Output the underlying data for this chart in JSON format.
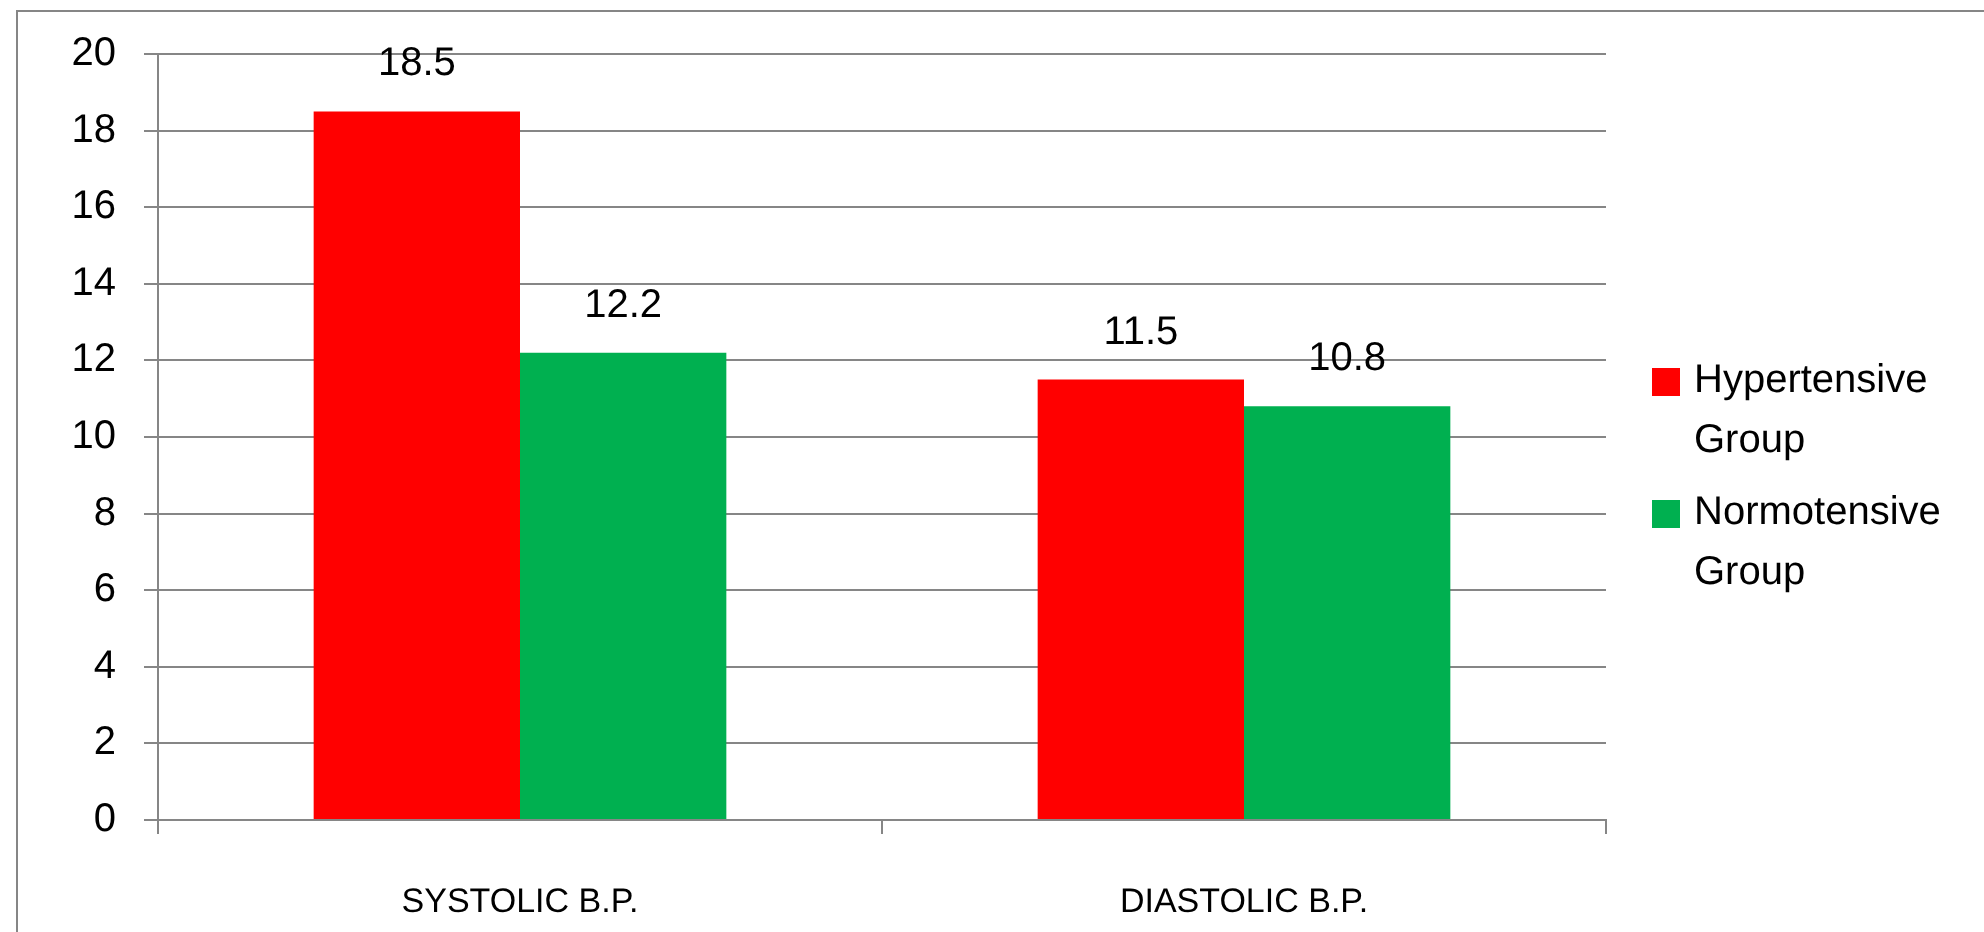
{
  "chart_data": {
    "type": "bar",
    "categories": [
      "SYSTOLIC B.P.",
      "DIASTOLIC B.P."
    ],
    "series": [
      {
        "name": "Hypertensive Group",
        "color": "#ff0000",
        "values": [
          18.5,
          11.5
        ]
      },
      {
        "name": "Normotensive Group",
        "color": "#00b050",
        "values": [
          12.2,
          10.8
        ]
      }
    ],
    "ylim": [
      0,
      20
    ],
    "yticks": [
      0,
      2,
      4,
      6,
      8,
      10,
      12,
      14,
      16,
      18,
      20
    ],
    "grid": "y",
    "legend": "right",
    "data_labels": true
  }
}
